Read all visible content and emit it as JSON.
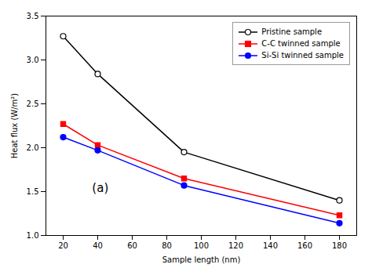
{
  "chart_data": {
    "type": "line",
    "x": [
      20,
      40,
      90,
      180
    ],
    "series": [
      {
        "name": "Pristine sample",
        "color": "black",
        "marker": "circle_open",
        "values": [
          3.27,
          2.84,
          1.95,
          1.4
        ]
      },
      {
        "name": "C-C twinned sample",
        "color": "red",
        "marker": "square",
        "values": [
          2.27,
          2.03,
          1.65,
          1.23
        ]
      },
      {
        "name": "Si-Si twinned sample",
        "color": "blue",
        "marker": "circle",
        "values": [
          2.12,
          1.97,
          1.57,
          1.14
        ]
      }
    ],
    "xlabel": "Sample length (nm)",
    "ylabel": "Heat flux (W/m²)",
    "annotation": "(a)",
    "xlim": [
      10,
      190
    ],
    "ylim": [
      1.0,
      3.5
    ],
    "xticks": [
      20,
      40,
      60,
      80,
      100,
      120,
      140,
      160,
      180
    ],
    "yticks": [
      {
        "value": 1.0,
        "label": "1.0"
      },
      1.5,
      {
        "value": 2.0,
        "label": "2.0"
      },
      2.5,
      {
        "value": 3.0,
        "label": "3.0"
      },
      3.5
    ],
    "grid": false,
    "legend": "upper right"
  }
}
